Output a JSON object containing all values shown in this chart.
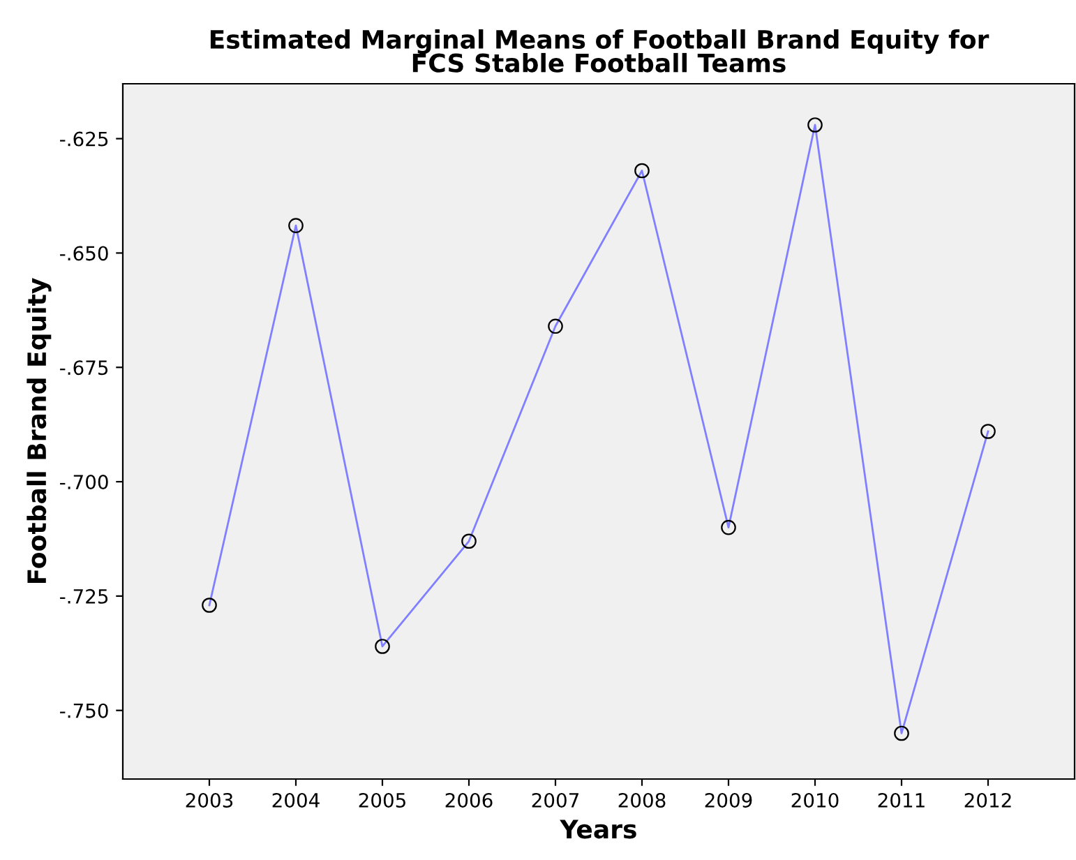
{
  "chart_data": {
    "type": "line",
    "title": "Estimated Marginal Means of Football Brand Equity for\nFCS Stable Football Teams",
    "xlabel": "Years",
    "ylabel": "Football Brand Equity",
    "categories": [
      "2003",
      "2004",
      "2005",
      "2006",
      "2007",
      "2008",
      "2009",
      "2010",
      "2011",
      "2012"
    ],
    "series": [
      {
        "color": "#7f7fff",
        "values": [
          -0.727,
          -0.644,
          -0.736,
          -0.713,
          -0.666,
          -0.632,
          -0.71,
          -0.622,
          -0.755,
          -0.689
        ]
      }
    ],
    "ylim": [
      -0.765,
      -0.613
    ],
    "yticks": [
      {
        "value": -0.75,
        "label": "-.750"
      },
      {
        "value": -0.725,
        "label": "-.725"
      },
      {
        "value": -0.7,
        "label": "-.700"
      },
      {
        "value": -0.675,
        "label": "-.675"
      },
      {
        "value": -0.65,
        "label": "-.650"
      },
      {
        "value": -0.625,
        "label": "-.625"
      }
    ],
    "marker": "circle",
    "line_style": "solid",
    "grid": false,
    "legend": false
  }
}
